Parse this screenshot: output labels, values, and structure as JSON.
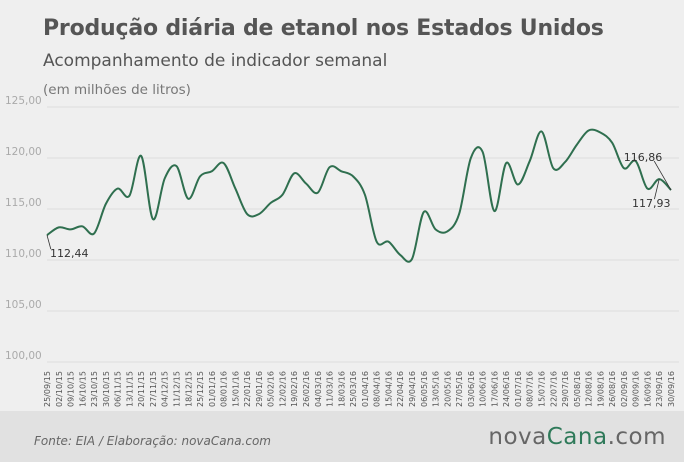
{
  "header": {
    "title": "Produção diária de etanol nos Estados Unidos",
    "subtitle": "Acompanhamento de indicador semanal",
    "unit": "(em milhões de litros)"
  },
  "footer": {
    "source": "Fonte:  EIA / Elaboração:  novaCana.com",
    "logo_part1": "nova",
    "logo_part2": "Cana",
    "logo_part3": ".com"
  },
  "colors": {
    "line": "#2f6f4f",
    "grid": "#dcdcdc",
    "logo_green": "#2f7a5a"
  },
  "chart_data": {
    "type": "line",
    "title": "Produção diária de etanol nos Estados Unidos",
    "subtitle": "Acompanhamento de indicador semanal",
    "ylabel": "(em milhões de litros)",
    "ylim": [
      100,
      125
    ],
    "yticks": [
      "100,00",
      "105,00",
      "110,00",
      "115,00",
      "120,00",
      "125,00"
    ],
    "grid": true,
    "x": [
      "25/09/15",
      "02/10/15",
      "09/10/15",
      "16/10/15",
      "23/10/15",
      "30/10/15",
      "06/11/15",
      "13/11/15",
      "20/11/15",
      "27/11/15",
      "04/12/15",
      "11/12/15",
      "18/12/15",
      "25/12/15",
      "01/01/16",
      "08/01/16",
      "15/01/16",
      "22/01/16",
      "29/01/16",
      "05/02/16",
      "12/02/16",
      "19/02/16",
      "26/02/16",
      "04/03/16",
      "11/03/16",
      "18/03/16",
      "25/03/16",
      "01/04/16",
      "08/04/16",
      "15/04/16",
      "22/04/16",
      "29/04/16",
      "06/05/16",
      "13/05/16",
      "20/05/16",
      "27/05/16",
      "03/06/16",
      "10/06/16",
      "17/06/16",
      "24/06/16",
      "01/07/16",
      "08/07/16",
      "15/07/16",
      "22/07/16",
      "29/07/16",
      "05/08/16",
      "12/08/16",
      "19/08/16",
      "26/08/16",
      "02/09/16",
      "09/09/16",
      "16/09/16",
      "23/09/16",
      "30/09/16"
    ],
    "values": [
      112.44,
      113.2,
      113.0,
      113.3,
      112.6,
      115.5,
      117.0,
      116.3,
      120.2,
      114.0,
      118.0,
      119.2,
      116.0,
      118.2,
      118.7,
      119.5,
      117.0,
      114.5,
      114.5,
      115.6,
      116.4,
      118.5,
      117.5,
      116.6,
      119.1,
      118.7,
      118.2,
      116.4,
      111.8,
      111.8,
      110.5,
      110.1,
      114.7,
      113.0,
      112.8,
      114.5,
      120.0,
      120.6,
      114.8,
      119.5,
      117.4,
      119.7,
      122.6,
      119.0,
      119.6,
      121.3,
      122.7,
      122.5,
      121.5,
      119.0,
      119.7,
      117.0,
      117.93,
      116.86
    ],
    "annotations": [
      {
        "label": "112,44",
        "x": "25/09/15"
      },
      {
        "label": "117,93",
        "x": "23/09/16"
      },
      {
        "label": "116,86",
        "x": "30/09/16"
      }
    ]
  }
}
